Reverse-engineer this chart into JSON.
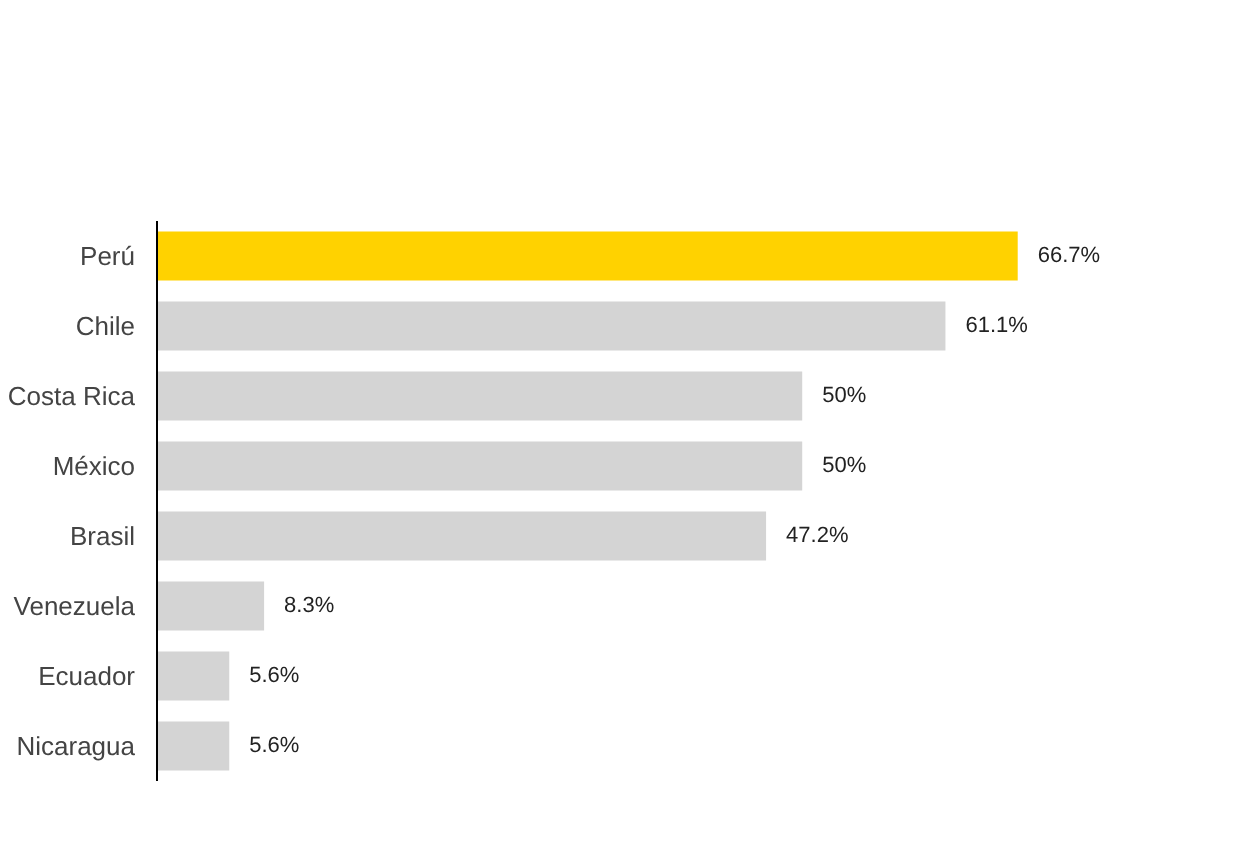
{
  "chart_data": {
    "type": "bar",
    "orientation": "horizontal",
    "categories": [
      "Perú",
      "Chile",
      "Costa Rica",
      "México",
      "Brasil",
      "Venezuela",
      "Ecuador",
      "Nicaragua"
    ],
    "values": [
      66.7,
      61.1,
      50,
      50,
      47.2,
      8.3,
      5.6,
      5.6
    ],
    "colors": [
      "#ffd200",
      "#d4d4d4",
      "#d4d4d4",
      "#d4d4d4",
      "#d4d4d4",
      "#d4d4d4",
      "#d4d4d4",
      "#d4d4d4"
    ],
    "value_labels": [
      "66.7%",
      "61.1%",
      "50%",
      "50%",
      "47.2%",
      "8.3%",
      "5.6%",
      "5.6%"
    ]
  }
}
